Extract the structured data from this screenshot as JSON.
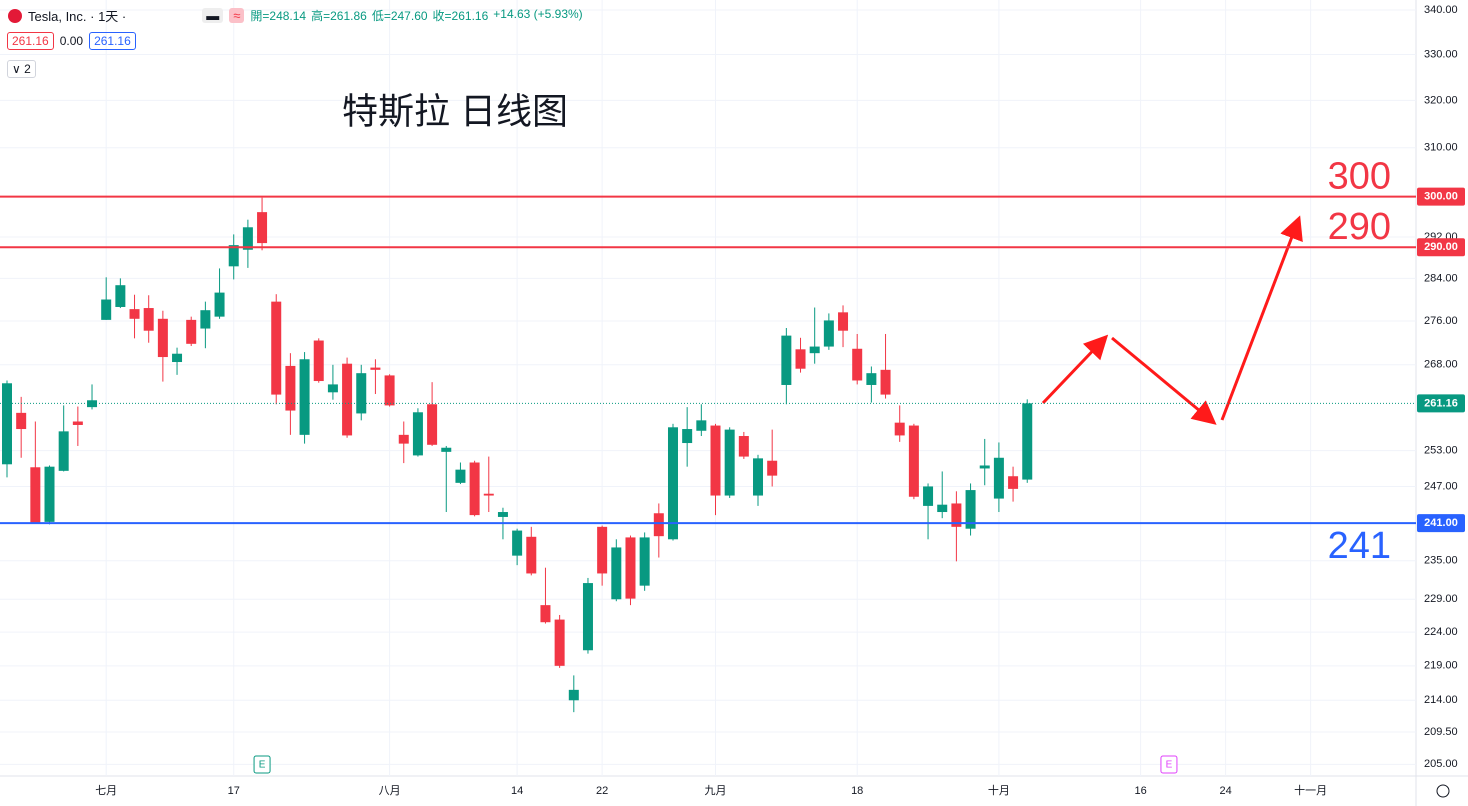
{
  "header": {
    "symbol": "Tesla, Inc. · 1天 ·",
    "ohlc": [
      "開=248.14",
      "高=261.86",
      "低=247.60",
      "收=261.16",
      "+14.63 (+5.93%)"
    ],
    "boxes": [
      "261.16",
      "0.00",
      "261.16"
    ],
    "indicator_count": "2"
  },
  "chart_data": {
    "type": "candlestick",
    "title": "特斯拉 日线图",
    "log_scale": true,
    "grid": true,
    "color_up": "#089981",
    "color_down": "#f23645",
    "categories": [
      null,
      null,
      null,
      null,
      null,
      null,
      null,
      "七月",
      null,
      null,
      null,
      null,
      null,
      null,
      null,
      null,
      "17",
      null,
      null,
      null,
      null,
      null,
      null,
      null,
      null,
      null,
      null,
      "八月",
      null,
      null,
      null,
      null,
      null,
      null,
      null,
      null,
      "14",
      null,
      null,
      null,
      null,
      null,
      "22",
      null,
      null,
      null,
      null,
      null,
      null,
      null,
      "九月",
      null,
      null,
      null,
      null,
      null,
      null,
      null,
      null,
      null,
      "18",
      null,
      null,
      null,
      null,
      null,
      null,
      null,
      null,
      null,
      "十月",
      null,
      null,
      null,
      null,
      null,
      null,
      null,
      null,
      null,
      "16",
      null,
      null,
      null,
      null,
      null,
      "24",
      null,
      null,
      null,
      null,
      null,
      "十一月"
    ],
    "open": [
      250.7,
      259.5,
      250.2,
      241.2,
      249.6,
      258.0,
      260.5,
      276.2,
      278.6,
      278.2,
      278.4,
      276.4,
      268.5,
      276.2,
      274.6,
      276.8,
      286.3,
      289.5,
      296.9,
      279.6,
      267.8,
      255.7,
      272.4,
      263.1,
      268.2,
      259.4,
      267.5,
      266.1,
      255.7,
      252.2,
      261.0,
      252.8,
      247.6,
      251.0,
      245.8,
      242.0,
      235.8,
      238.8,
      228.1,
      225.9,
      214.0,
      221.3,
      240.4,
      229.0,
      238.7,
      231.1,
      242.6,
      238.4,
      254.3,
      256.4,
      257.3,
      245.5,
      255.5,
      245.5,
      251.3,
      264.4,
      270.8,
      270.1,
      271.3,
      277.6,
      270.9,
      264.4,
      267.1,
      257.8,
      257.3,
      243.8,
      242.8,
      244.2,
      240.1,
      250.0,
      245.0,
      248.7,
      248.14,
      null,
      null,
      null,
      null,
      null,
      null,
      null,
      null,
      null,
      null,
      null,
      null,
      null,
      null,
      null,
      null,
      null,
      null,
      null,
      null
    ],
    "high": [
      265.2,
      262.3,
      258.0,
      250.5,
      260.8,
      260.6,
      264.5,
      284.2,
      284.0,
      280.9,
      280.8,
      277.9,
      271.1,
      276.8,
      279.6,
      285.9,
      292.5,
      295.4,
      299.8,
      281.0,
      270.1,
      270.3,
      272.8,
      268.0,
      269.3,
      268.0,
      269.0,
      266.3,
      258.0,
      260.3,
      264.9,
      253.8,
      251.0,
      251.3,
      252.0,
      243.5,
      240.1,
      240.4,
      233.9,
      226.6,
      217.6,
      232.3,
      240.6,
      238.4,
      239.0,
      239.5,
      244.2,
      257.6,
      260.5,
      261.0,
      257.6,
      257.0,
      256.2,
      252.3,
      256.6,
      274.7,
      272.9,
      278.5,
      277.4,
      278.9,
      273.6,
      267.7,
      273.6,
      260.8,
      257.6,
      247.5,
      249.5,
      246.2,
      247.5,
      255.0,
      254.4,
      250.3,
      261.86,
      null,
      null,
      null,
      null,
      null,
      null,
      null,
      null,
      null,
      null,
      null,
      null,
      null,
      null,
      null,
      null,
      null,
      null,
      null,
      null
    ],
    "low": [
      248.5,
      251.8,
      240.9,
      240.8,
      249.5,
      253.8,
      260.1,
      276.2,
      278.4,
      272.8,
      272.0,
      265.0,
      266.2,
      271.4,
      271.0,
      276.4,
      283.8,
      286.0,
      289.4,
      261.0,
      255.7,
      254.2,
      264.8,
      261.8,
      255.2,
      258.2,
      262.8,
      260.6,
      250.9,
      252.0,
      253.8,
      242.8,
      247.4,
      242.1,
      242.8,
      238.4,
      234.3,
      232.7,
      225.3,
      218.7,
      212.3,
      220.8,
      231.1,
      228.7,
      228.1,
      230.3,
      235.5,
      238.2,
      250.3,
      255.5,
      242.3,
      245.1,
      251.6,
      243.8,
      247.0,
      261.0,
      266.6,
      268.2,
      270.7,
      271.2,
      264.5,
      261.3,
      262.0,
      254.5,
      244.9,
      238.4,
      241.8,
      234.9,
      239.0,
      247.2,
      242.8,
      244.5,
      247.6,
      null,
      null,
      null,
      null,
      null,
      null,
      null,
      null,
      null,
      null,
      null,
      null,
      null,
      null,
      null,
      null,
      null,
      null,
      null,
      null
    ],
    "close": [
      264.7,
      256.7,
      241.0,
      250.3,
      256.3,
      257.4,
      261.7,
      280.0,
      282.7,
      276.4,
      274.2,
      269.4,
      270.0,
      271.8,
      278.0,
      281.3,
      290.4,
      293.9,
      290.8,
      262.7,
      259.9,
      269.0,
      265.1,
      264.5,
      255.6,
      266.5,
      267.1,
      260.8,
      254.2,
      259.6,
      254.0,
      253.5,
      249.8,
      242.3,
      245.5,
      242.8,
      239.8,
      233.0,
      225.5,
      219.0,
      215.5,
      231.5,
      233.0,
      237.1,
      229.1,
      238.7,
      238.9,
      257.0,
      256.7,
      258.2,
      245.5,
      256.6,
      252.0,
      251.7,
      248.8,
      273.3,
      267.3,
      271.3,
      276.1,
      274.2,
      265.2,
      266.5,
      262.7,
      255.6,
      245.3,
      247.0,
      244.0,
      240.4,
      246.4,
      250.5,
      251.8,
      246.6,
      261.16,
      null,
      null,
      null,
      null,
      null,
      null,
      null,
      null,
      null,
      null,
      null,
      null,
      null,
      null,
      null,
      null,
      null,
      null,
      null,
      null
    ],
    "ylim": [
      203.4,
      342.3
    ],
    "yticks": [
      {
        "value": 340,
        "label": "340.00"
      },
      {
        "value": 330,
        "label": "330.00"
      },
      {
        "value": 320,
        "label": "320.00"
      },
      {
        "value": 310,
        "label": "310.00"
      },
      {
        "value": 292,
        "label": "292.00"
      },
      {
        "value": 284,
        "label": "284.00"
      },
      {
        "value": 276,
        "label": "276.00"
      },
      {
        "value": 268,
        "label": "268.00"
      },
      {
        "value": 253,
        "label": "253.00"
      },
      {
        "value": 247,
        "label": "247.00"
      },
      {
        "value": 235,
        "label": "235.00"
      },
      {
        "value": 229,
        "label": "229.00"
      },
      {
        "value": 224,
        "label": "224.00"
      },
      {
        "value": 219,
        "label": "219.00"
      },
      {
        "value": 214,
        "label": "214.00"
      },
      {
        "value": 209.5,
        "label": "209.50"
      },
      {
        "value": 205,
        "label": "205.00"
      }
    ],
    "price_lines": [
      {
        "value": 300,
        "label": "300.00",
        "big_label": "300",
        "color": "#f23645"
      },
      {
        "value": 290,
        "label": "290.00",
        "big_label": "290",
        "color": "#f23645"
      },
      {
        "value": 241,
        "label": "241.00",
        "big_label": "241",
        "color": "#2962ff"
      },
      {
        "value": 261.16,
        "label": "261.16",
        "color": "#089981",
        "dotted": true
      }
    ],
    "events": [
      {
        "index": 18,
        "label": "E",
        "color": "#089981"
      },
      {
        "index": 82,
        "label": "E",
        "color": "#e040fb"
      }
    ]
  }
}
